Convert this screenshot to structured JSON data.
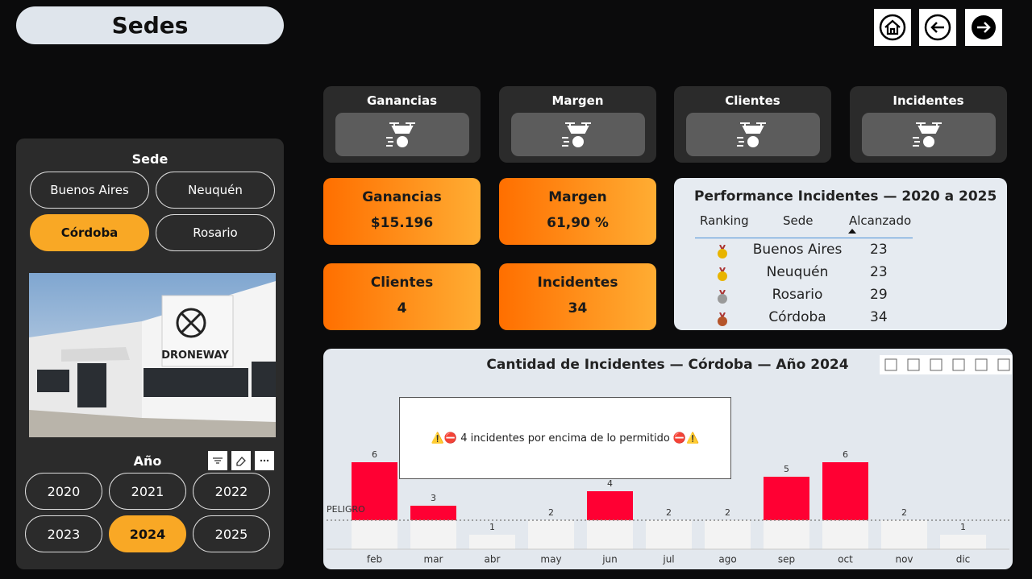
{
  "header": {
    "title": "Sedes"
  },
  "sede_filter": {
    "title": "Sede",
    "options": [
      "Buenos Aires",
      "Neuquén",
      "Córdoba",
      "Rosario"
    ],
    "selected_index": 2
  },
  "image_text": "DRONEWAY",
  "year_filter": {
    "title": "Año",
    "options": [
      "2020",
      "2021",
      "2022",
      "2023",
      "2024",
      "2025"
    ],
    "selected_index": 4
  },
  "kpi_icons": [
    "Ganancias",
    "Margen",
    "Clientes",
    "Incidentes"
  ],
  "kpis": [
    {
      "label": "Ganancias",
      "value": "$15.196"
    },
    {
      "label": "Margen",
      "value": "61,90 %"
    },
    {
      "label": "Clientes",
      "value": "4"
    },
    {
      "label": "Incidentes",
      "value": "34"
    }
  ],
  "ranking_table": {
    "title": "Performance Incidentes — 2020 a 2025",
    "columns": [
      "Ranking",
      "Sede",
      "Alcanzado"
    ],
    "rows": [
      [
        "Buenos Aires",
        "23"
      ],
      [
        "Neuquén",
        "23"
      ],
      [
        "Rosario",
        "29"
      ],
      [
        "Córdoba",
        "34"
      ]
    ]
  },
  "chart_data": {
    "type": "bar",
    "title": "Cantidad de Incidentes — Córdoba — Año 2024",
    "categories": [
      "feb",
      "mar",
      "abr",
      "may",
      "jun",
      "jul",
      "ago",
      "sep",
      "oct",
      "nov",
      "dic"
    ],
    "values": [
      6,
      3,
      1,
      2,
      4,
      2,
      2,
      5,
      6,
      2,
      1
    ],
    "ylim": [
      0,
      7
    ],
    "threshold": {
      "value": 2,
      "label": "PELIGRO"
    },
    "color": "#ff0033",
    "base_color": "#f3f3f3",
    "annotation": "⚠️⛔ 4 incidentes por encima de lo permitido ⛔⚠️"
  }
}
